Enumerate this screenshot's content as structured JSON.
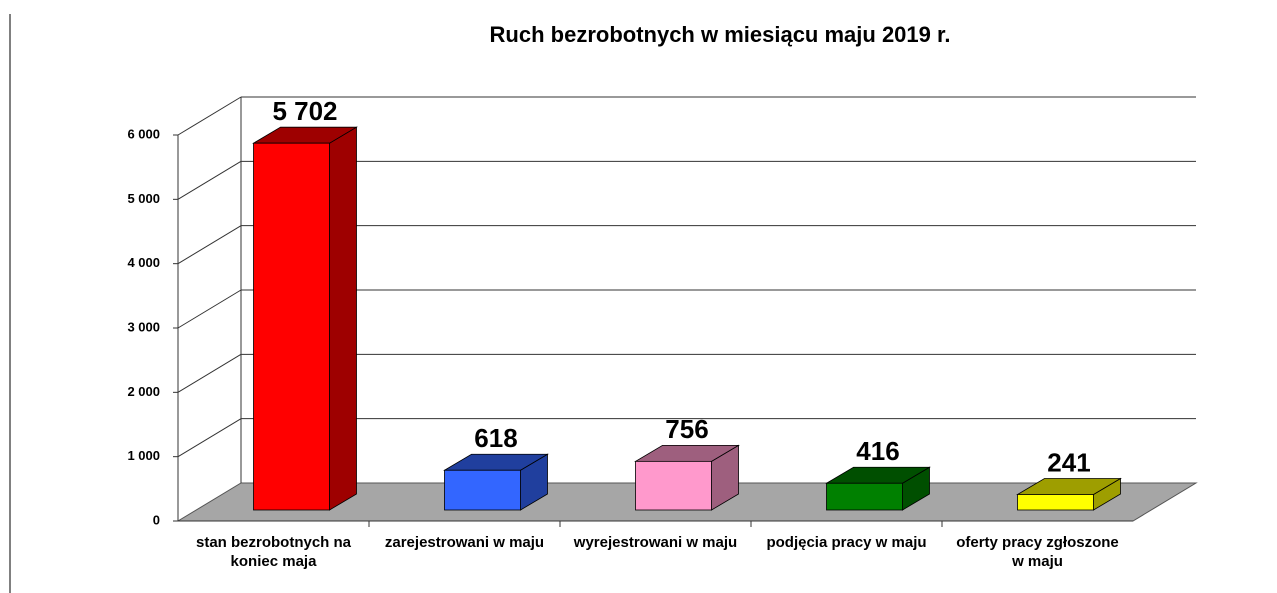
{
  "chart_data": {
    "type": "bar3d",
    "title": "Ruch  bezrobotnych  w  miesiącu  maju  2019 r.",
    "categories": [
      "stan bezrobotnych na koniec maja",
      "zarejestrowani w maju",
      "wyrejestrowani w maju",
      "podjęcia pracy w maju",
      "oferty pracy zgłoszone w maju"
    ],
    "values": [
      5702,
      618,
      756,
      416,
      241
    ],
    "value_labels": [
      "5 702",
      "618",
      "756",
      "416",
      "241"
    ],
    "colors": [
      "#ff0000",
      "#3366ff",
      "#ff99cc",
      "#008000",
      "#ffff00"
    ],
    "ylim": [
      0,
      6000
    ],
    "yticks": [
      0,
      {
        "value": 1000,
        "label": "1 000"
      },
      {
        "value": 2000,
        "label": "2 000"
      },
      {
        "value": 3000,
        "label": "3 000"
      },
      {
        "value": 4000,
        "label": "4 000"
      },
      {
        "value": 5000,
        "label": "5 000"
      },
      {
        "value": 6000,
        "label": "6 000"
      }
    ],
    "grid": true
  }
}
